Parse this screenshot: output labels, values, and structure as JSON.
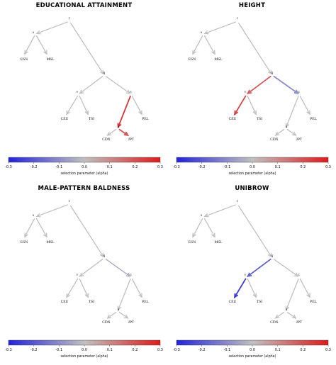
{
  "axis": {
    "label": "selection parameter (alpha)",
    "ticks": [
      "-0.3",
      "-0.2",
      "-0.1",
      "0.0",
      "0.1",
      "0.2",
      "0.3"
    ],
    "min": -0.3,
    "max": 0.3
  },
  "colors": {
    "neg": "#2323d8",
    "mid": "#c0c0c0",
    "pos": "#dc1c1c"
  },
  "panels": [
    {
      "title": "EDUCATIONAL ATTAINMENT",
      "labels": {
        "r": "r",
        "s": "s",
        "ESN": "ESN",
        "MSL": "MSL",
        "q": "q",
        "v": "v",
        "t": "t",
        "CEU": "CEU",
        "TSI": "TSI",
        "PEL": "PEL",
        "u": "u",
        "CDX": "CDX",
        "JPT": "JPT"
      },
      "alpha": {
        "r-s": 0,
        "s-ESN": 0,
        "s-MSL": 0,
        "r-q": 0,
        "q-v": 0,
        "q-t": 0,
        "v-CEU": 0,
        "v-TSI": 0,
        "t-u": 0.25,
        "t-PEL": 0,
        "u-CDX": 0,
        "u-JPT": 0.2
      }
    },
    {
      "title": "HEIGHT",
      "labels": {
        "r": "r",
        "s": "s",
        "ESN": "ESN",
        "MSL": "MSL",
        "q": "q",
        "v": "v",
        "t": "t",
        "CEU": "CEU",
        "TSI": "TSI",
        "PEL": "PEL",
        "u": "u",
        "CDX": "CDX",
        "JPT": "JPT"
      },
      "alpha": {
        "r-s": 0,
        "s-ESN": 0,
        "s-MSL": 0,
        "r-q": 0,
        "q-v": 0.18,
        "q-t": -0.1,
        "v-CEU": 0.22,
        "v-TSI": 0,
        "t-u": 0,
        "t-PEL": 0,
        "u-CDX": 0,
        "u-JPT": 0
      }
    },
    {
      "title": "MALE-PATTERN BALDNESS",
      "labels": {
        "r": "r",
        "s": "s",
        "ESN": "ESN",
        "MSL": "MSL",
        "q": "q",
        "v": "v",
        "t": "t",
        "CEU": "CEU",
        "TSI": "TSI",
        "PEL": "PEL",
        "u": "u",
        "CDX": "CDX",
        "JPT": "JPT"
      },
      "alpha": {
        "r-s": 0,
        "s-ESN": 0,
        "s-MSL": 0,
        "r-q": 0,
        "q-v": 0,
        "q-t": -0.05,
        "v-CEU": 0,
        "v-TSI": 0,
        "t-u": 0,
        "t-PEL": 0,
        "u-CDX": 0,
        "u-JPT": 0
      }
    },
    {
      "title": "UNIBROW",
      "labels": {
        "r": "r",
        "s": "s",
        "ESN": "ESN",
        "MSL": "MSL",
        "q": "q",
        "v": "v",
        "t": "t",
        "CEU": "CEU",
        "TSI": "TSI",
        "PEL": "PEL",
        "u": "u",
        "CDX": "CDX",
        "JPT": "JPT"
      },
      "alpha": {
        "r-s": 0,
        "s-ESN": 0,
        "s-MSL": 0,
        "r-q": 0,
        "q-v": -0.18,
        "q-t": 0,
        "v-CEU": -0.25,
        "v-TSI": 0,
        "t-u": 0,
        "t-PEL": 0,
        "u-CDX": 0,
        "u-JPT": 0
      }
    }
  ]
}
